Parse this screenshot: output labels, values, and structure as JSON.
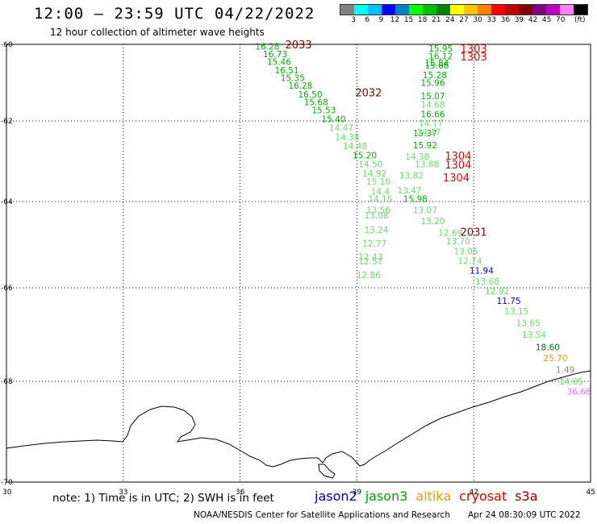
{
  "header": {
    "title": "12:00 – 23:59 UTC 04/22/2022",
    "subtitle": "12 hour collection of altimeter wave heights"
  },
  "legend": {
    "colors": [
      "#808080",
      "#00ffff",
      "#00c0ff",
      "#0000ff",
      "#0080c0",
      "#00ff00",
      "#00c000",
      "#008000",
      "#ffff00",
      "#ffc000",
      "#ff8000",
      "#ff0000",
      "#c00000",
      "#800000",
      "#800080",
      "#c000c0",
      "#ff80ff",
      "#000000"
    ],
    "labels": [
      "3",
      "6",
      "9",
      "12",
      "15",
      "18",
      "21",
      "24",
      "27",
      "30",
      "33",
      "36",
      "39",
      "42",
      "45",
      "70"
    ],
    "unit": "(ft)"
  },
  "axes": {
    "lon_ticks": [
      "30",
      "33",
      "36",
      "39",
      "42",
      "45"
    ],
    "lat_ticks": [
      "-60",
      "-62",
      "-64",
      "-66",
      "-68",
      "-70"
    ]
  },
  "colors": {
    "lgreen": "#66dd66",
    "green": "#00b000",
    "dgreen": "#007700",
    "blue": "#0000cc",
    "orange": "#e6a000",
    "gray": "#888888",
    "pink": "#ff66ff",
    "red": "#e00000",
    "darkred": "#8b0000"
  },
  "time_labels": [
    {
      "text": "2033",
      "lon": 37.5,
      "lat": -60.0,
      "red": false
    },
    {
      "text": "2032",
      "lon": 39.3,
      "lat": -61.25,
      "red": false
    },
    {
      "text": "1303",
      "lon": 42.0,
      "lat": -60.1,
      "red": true
    },
    {
      "text": "1303",
      "lon": 42.0,
      "lat": -60.32,
      "red": true
    },
    {
      "text": "1304",
      "lon": 41.6,
      "lat": -62.86,
      "red": true
    },
    {
      "text": "1304",
      "lon": 41.6,
      "lat": -63.08,
      "red": true
    },
    {
      "text": "1304",
      "lon": 41.55,
      "lat": -63.4,
      "red": true
    },
    {
      "text": "2031",
      "lon": 42.0,
      "lat": -64.7,
      "red": false
    }
  ],
  "track_a": [
    {
      "v": "16.28",
      "lon": 36.7,
      "lat": -60.05,
      "c": "green"
    },
    {
      "v": "16.73",
      "lon": 36.9,
      "lat": -60.25,
      "c": "green"
    },
    {
      "v": "15.46",
      "lon": 37.0,
      "lat": -60.45,
      "c": "green"
    },
    {
      "v": "16.51",
      "lon": 37.2,
      "lat": -60.67,
      "c": "green"
    },
    {
      "v": "15.35",
      "lon": 37.35,
      "lat": -60.87,
      "c": "green"
    },
    {
      "v": "16.28",
      "lon": 37.55,
      "lat": -61.07,
      "c": "green"
    },
    {
      "v": "16.50",
      "lon": 37.8,
      "lat": -61.3,
      "c": "green"
    },
    {
      "v": "15.68",
      "lon": 37.95,
      "lat": -61.5,
      "c": "green"
    },
    {
      "v": "15.53",
      "lon": 38.15,
      "lat": -61.72,
      "c": "green"
    },
    {
      "v": "15.40",
      "lon": 38.4,
      "lat": -61.95,
      "c": "green"
    },
    {
      "v": "14.47",
      "lon": 38.6,
      "lat": -62.17,
      "c": "lgreen"
    },
    {
      "v": "14.38",
      "lon": 38.75,
      "lat": -62.4,
      "c": "lgreen"
    },
    {
      "v": "14.48",
      "lon": 38.95,
      "lat": -62.62,
      "c": "lgreen"
    },
    {
      "v": "15.20",
      "lon": 39.2,
      "lat": -62.85,
      "c": "green"
    },
    {
      "v": "14.50",
      "lon": 39.35,
      "lat": -63.07,
      "c": "lgreen"
    },
    {
      "v": "14.92",
      "lon": 39.45,
      "lat": -63.3,
      "c": "lgreen"
    },
    {
      "v": "15.10",
      "lon": 39.55,
      "lat": -63.5,
      "c": "lgreen"
    },
    {
      "v": "14.4",
      "lon": 39.6,
      "lat": -63.75,
      "c": "lgreen"
    },
    {
      "v": "14.15",
      "lon": 39.6,
      "lat": -63.93,
      "c": "lgreen"
    },
    {
      "v": "13.56",
      "lon": 39.55,
      "lat": -64.2,
      "c": "lgreen"
    },
    {
      "v": "13.08",
      "lon": 39.5,
      "lat": -64.32,
      "c": "lgreen"
    },
    {
      "v": "13.24",
      "lon": 39.5,
      "lat": -64.65,
      "c": "lgreen"
    },
    {
      "v": "12.77",
      "lon": 39.45,
      "lat": -64.97,
      "c": "lgreen"
    },
    {
      "v": "12.43",
      "lon": 39.35,
      "lat": -65.28,
      "c": "lgreen"
    },
    {
      "v": "12.57",
      "lon": 39.35,
      "lat": -65.38,
      "c": "lgreen"
    },
    {
      "v": "12.86",
      "lon": 39.3,
      "lat": -65.7,
      "c": "lgreen"
    }
  ],
  "track_b": [
    {
      "v": "15.95",
      "lon": 41.15,
      "lat": -60.1,
      "c": "green"
    },
    {
      "v": "16.12",
      "lon": 41.15,
      "lat": -60.3,
      "c": "green"
    },
    {
      "v": "15.84",
      "lon": 41.05,
      "lat": -60.48,
      "c": "green"
    },
    {
      "v": "15.66",
      "lon": 41.05,
      "lat": -60.55,
      "c": "green"
    },
    {
      "v": "15.28",
      "lon": 41.0,
      "lat": -60.8,
      "c": "green"
    },
    {
      "v": "15.96",
      "lon": 40.95,
      "lat": -61.0,
      "c": "green"
    },
    {
      "v": "15.07",
      "lon": 40.95,
      "lat": -61.35,
      "c": "green"
    },
    {
      "v": "14.68",
      "lon": 40.95,
      "lat": -61.57,
      "c": "lgreen"
    },
    {
      "v": "16.66",
      "lon": 40.95,
      "lat": -61.82,
      "c": "green"
    },
    {
      "v": "14.17",
      "lon": 40.9,
      "lat": -62.05,
      "c": "lgreen"
    },
    {
      "v": "15.37",
      "lon": 40.75,
      "lat": -62.3,
      "c": "green"
    },
    {
      "v": "14.17",
      "lon": 40.85,
      "lat": -62.27,
      "c": "lgreen"
    },
    {
      "v": "15.92",
      "lon": 40.75,
      "lat": -62.6,
      "c": "green"
    },
    {
      "v": "14.38",
      "lon": 40.55,
      "lat": -62.88,
      "c": "lgreen"
    },
    {
      "v": "13.88",
      "lon": 40.8,
      "lat": -63.07,
      "c": "lgreen"
    },
    {
      "v": "13.82",
      "lon": 40.4,
      "lat": -63.35,
      "c": "lgreen"
    },
    {
      "v": "13.47",
      "lon": 40.35,
      "lat": -63.72,
      "c": "lgreen"
    },
    {
      "v": "15.98",
      "lon": 40.5,
      "lat": -63.93,
      "c": "green"
    },
    {
      "v": "13.07",
      "lon": 40.75,
      "lat": -64.2,
      "c": "lgreen"
    },
    {
      "v": "13.20",
      "lon": 40.95,
      "lat": -64.45,
      "c": "lgreen"
    },
    {
      "v": "12.69",
      "lon": 41.4,
      "lat": -64.72,
      "c": "lgreen"
    },
    {
      "v": "13.70",
      "lon": 41.6,
      "lat": -64.92,
      "c": "lgreen"
    },
    {
      "v": "13.06",
      "lon": 41.8,
      "lat": -65.15,
      "c": "lgreen"
    },
    {
      "v": "12.74",
      "lon": 41.9,
      "lat": -65.37,
      "c": "lgreen"
    },
    {
      "v": "11.94",
      "lon": 42.2,
      "lat": -65.6,
      "c": "blue"
    },
    {
      "v": "13.68",
      "lon": 42.35,
      "lat": -65.85,
      "c": "lgreen"
    },
    {
      "v": "12.92",
      "lon": 42.6,
      "lat": -66.07,
      "c": "lgreen"
    },
    {
      "v": "11.75",
      "lon": 42.9,
      "lat": -66.28,
      "c": "blue"
    },
    {
      "v": "13.15",
      "lon": 43.1,
      "lat": -66.5,
      "c": "lgreen"
    },
    {
      "v": "13.65",
      "lon": 43.4,
      "lat": -66.75,
      "c": "lgreen"
    },
    {
      "v": "13.54",
      "lon": 43.55,
      "lat": -67.0,
      "c": "lgreen"
    },
    {
      "v": "18.60",
      "lon": 43.9,
      "lat": -67.27,
      "c": "dgreen"
    },
    {
      "v": "25.70",
      "lon": 44.1,
      "lat": -67.5,
      "c": "orange"
    },
    {
      "v": "1.49",
      "lon": 44.35,
      "lat": -67.75,
      "c": "gray"
    },
    {
      "v": "14.05",
      "lon": 44.5,
      "lat": -68.0,
      "c": "lgreen"
    },
    {
      "v": "36.66",
      "lon": 44.7,
      "lat": -68.2,
      "c": "pink"
    }
  ],
  "footer": {
    "note": "note: 1) Time is in UTC; 2) SWH is in feet",
    "satellites": [
      {
        "name": "jason2",
        "color": "#0000cc"
      },
      {
        "name": "jason3",
        "color": "#00a000"
      },
      {
        "name": "altika",
        "color": "#e6a000"
      },
      {
        "name": "cryosat",
        "color": "#e00000"
      },
      {
        "name": "s3a",
        "color": "#8b0000"
      }
    ],
    "credit": "NOAA/NESDIS Center for Satellite Applications and Research",
    "timestamp": "Apr 24 08:30:09 UTC 2022"
  }
}
